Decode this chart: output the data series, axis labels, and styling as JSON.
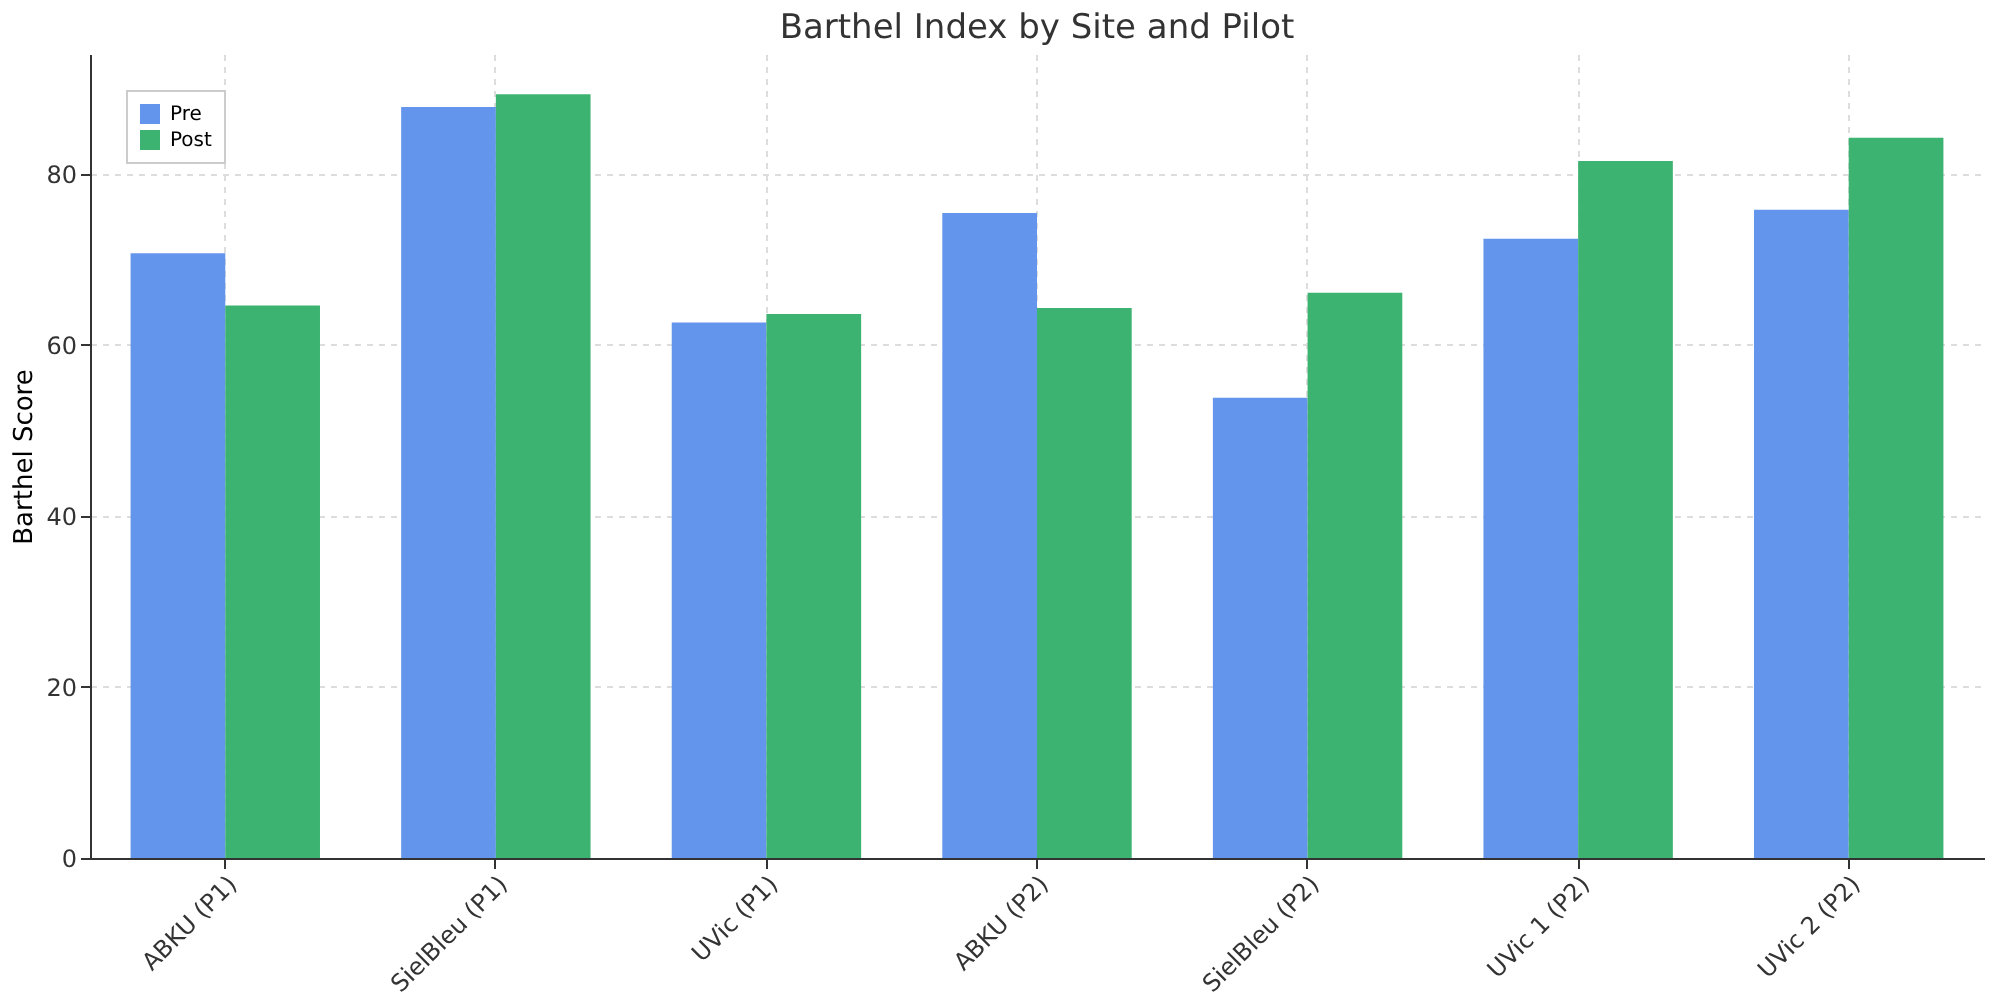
{
  "chart_data": {
    "type": "bar",
    "title": "Barthel Index by Site and Pilot",
    "ylabel": "Barthel Score",
    "categories": [
      "ABKU (P1)",
      "SielBleu (P1)",
      "UVic (P1)",
      "ABKU (P2)",
      "SielBleu (P2)",
      "UVic 1 (P2)",
      "UVic 2 (P2)"
    ],
    "series": [
      {
        "name": "Pre",
        "color": "#6495ed",
        "values": [
          70.7,
          87.8,
          62.6,
          75.4,
          53.8,
          72.4,
          75.8
        ]
      },
      {
        "name": "Post",
        "color": "#3cb371",
        "values": [
          64.6,
          89.3,
          63.6,
          64.3,
          66.1,
          81.5,
          84.2
        ]
      }
    ],
    "ylim": [
      0,
      94
    ],
    "yticks": [
      0,
      20,
      40,
      60,
      80
    ],
    "grid": true,
    "legend": "top left"
  }
}
